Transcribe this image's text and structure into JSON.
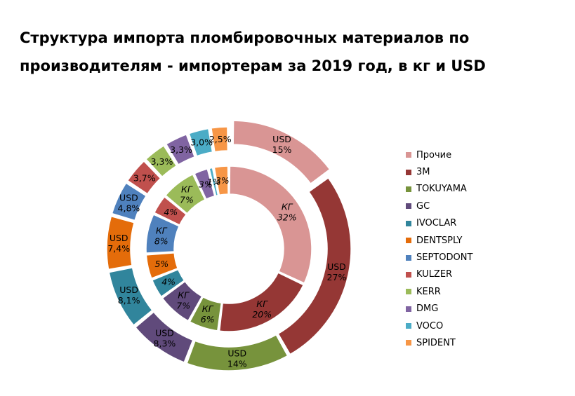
{
  "chart_data": {
    "type": "donut",
    "title_lines": [
      "Структура импорта пломбировочных материалов по",
      "производителям - импортерам за 2019 год,  в кг и USD"
    ],
    "legend_position": "right",
    "categories": [
      "Прочие",
      "3M",
      "TOKUYAMA",
      "GC",
      "IVOCLAR",
      "DENTSPLY",
      "SEPTODONT",
      "KULZER",
      "KERR",
      "DMG",
      "VOCO",
      "SPIDENT"
    ],
    "colors": [
      "#D99594",
      "#953735",
      "#77933C",
      "#604A7B",
      "#31859C",
      "#E46C0A",
      "#4F81BD",
      "#C0504D",
      "#9BBB59",
      "#8064A2",
      "#4BACC6",
      "#F79646"
    ],
    "series": [
      {
        "unit_label": "КГ",
        "ring": "inner",
        "values": [
          32,
          20,
          6,
          7,
          4,
          5,
          8,
          4,
          7,
          3,
          1,
          3
        ],
        "labels": [
          "КГ\n32%",
          "КГ\n20%",
          "КГ\n6%",
          "КГ\n7%",
          "4%",
          "5%",
          "КГ\n8%",
          "4%",
          "КГ\n7%",
          "3%",
          "1%",
          "3%"
        ]
      },
      {
        "unit_label": "USD",
        "ring": "outer",
        "values": [
          15,
          27,
          14,
          8.3,
          8.1,
          7.4,
          4.8,
          3.7,
          3.3,
          3.3,
          3.0,
          2.5
        ],
        "labels": [
          "USD\n15%",
          "USD\n27%",
          "USD\n14%",
          "USD\n8,3%",
          "USD\n8,1%",
          "USD\n7,4%",
          "USD\n4,8%",
          "3,7%",
          "3,3%",
          "3,3%",
          "3,0%",
          "2,5%"
        ]
      }
    ]
  }
}
